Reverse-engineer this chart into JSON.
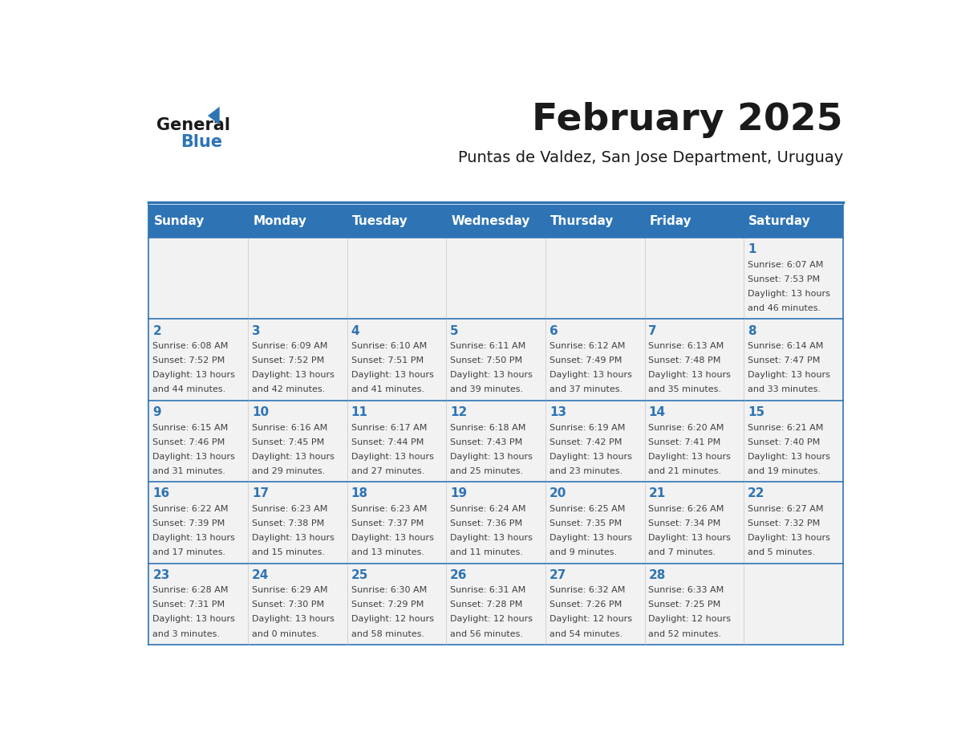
{
  "title": "February 2025",
  "subtitle": "Puntas de Valdez, San Jose Department, Uruguay",
  "days_of_week": [
    "Sunday",
    "Monday",
    "Tuesday",
    "Wednesday",
    "Thursday",
    "Friday",
    "Saturday"
  ],
  "header_bg": "#2E74B5",
  "header_text": "#FFFFFF",
  "cell_bg_light": "#F2F2F2",
  "cell_bg_white": "#FFFFFF",
  "border_color": "#2E74B5",
  "day_number_color": "#2E74B5",
  "cell_text_color": "#404040",
  "title_color": "#1A1A1A",
  "subtitle_color": "#1A1A1A",
  "logo_general_color": "#1A1A1A",
  "logo_blue_color": "#2E74B5",
  "weeks": [
    [
      {
        "day": "",
        "info": ""
      },
      {
        "day": "",
        "info": ""
      },
      {
        "day": "",
        "info": ""
      },
      {
        "day": "",
        "info": ""
      },
      {
        "day": "",
        "info": ""
      },
      {
        "day": "",
        "info": ""
      },
      {
        "day": "1",
        "info": "Sunrise: 6:07 AM\nSunset: 7:53 PM\nDaylight: 13 hours\nand 46 minutes."
      }
    ],
    [
      {
        "day": "2",
        "info": "Sunrise: 6:08 AM\nSunset: 7:52 PM\nDaylight: 13 hours\nand 44 minutes."
      },
      {
        "day": "3",
        "info": "Sunrise: 6:09 AM\nSunset: 7:52 PM\nDaylight: 13 hours\nand 42 minutes."
      },
      {
        "day": "4",
        "info": "Sunrise: 6:10 AM\nSunset: 7:51 PM\nDaylight: 13 hours\nand 41 minutes."
      },
      {
        "day": "5",
        "info": "Sunrise: 6:11 AM\nSunset: 7:50 PM\nDaylight: 13 hours\nand 39 minutes."
      },
      {
        "day": "6",
        "info": "Sunrise: 6:12 AM\nSunset: 7:49 PM\nDaylight: 13 hours\nand 37 minutes."
      },
      {
        "day": "7",
        "info": "Sunrise: 6:13 AM\nSunset: 7:48 PM\nDaylight: 13 hours\nand 35 minutes."
      },
      {
        "day": "8",
        "info": "Sunrise: 6:14 AM\nSunset: 7:47 PM\nDaylight: 13 hours\nand 33 minutes."
      }
    ],
    [
      {
        "day": "9",
        "info": "Sunrise: 6:15 AM\nSunset: 7:46 PM\nDaylight: 13 hours\nand 31 minutes."
      },
      {
        "day": "10",
        "info": "Sunrise: 6:16 AM\nSunset: 7:45 PM\nDaylight: 13 hours\nand 29 minutes."
      },
      {
        "day": "11",
        "info": "Sunrise: 6:17 AM\nSunset: 7:44 PM\nDaylight: 13 hours\nand 27 minutes."
      },
      {
        "day": "12",
        "info": "Sunrise: 6:18 AM\nSunset: 7:43 PM\nDaylight: 13 hours\nand 25 minutes."
      },
      {
        "day": "13",
        "info": "Sunrise: 6:19 AM\nSunset: 7:42 PM\nDaylight: 13 hours\nand 23 minutes."
      },
      {
        "day": "14",
        "info": "Sunrise: 6:20 AM\nSunset: 7:41 PM\nDaylight: 13 hours\nand 21 minutes."
      },
      {
        "day": "15",
        "info": "Sunrise: 6:21 AM\nSunset: 7:40 PM\nDaylight: 13 hours\nand 19 minutes."
      }
    ],
    [
      {
        "day": "16",
        "info": "Sunrise: 6:22 AM\nSunset: 7:39 PM\nDaylight: 13 hours\nand 17 minutes."
      },
      {
        "day": "17",
        "info": "Sunrise: 6:23 AM\nSunset: 7:38 PM\nDaylight: 13 hours\nand 15 minutes."
      },
      {
        "day": "18",
        "info": "Sunrise: 6:23 AM\nSunset: 7:37 PM\nDaylight: 13 hours\nand 13 minutes."
      },
      {
        "day": "19",
        "info": "Sunrise: 6:24 AM\nSunset: 7:36 PM\nDaylight: 13 hours\nand 11 minutes."
      },
      {
        "day": "20",
        "info": "Sunrise: 6:25 AM\nSunset: 7:35 PM\nDaylight: 13 hours\nand 9 minutes."
      },
      {
        "day": "21",
        "info": "Sunrise: 6:26 AM\nSunset: 7:34 PM\nDaylight: 13 hours\nand 7 minutes."
      },
      {
        "day": "22",
        "info": "Sunrise: 6:27 AM\nSunset: 7:32 PM\nDaylight: 13 hours\nand 5 minutes."
      }
    ],
    [
      {
        "day": "23",
        "info": "Sunrise: 6:28 AM\nSunset: 7:31 PM\nDaylight: 13 hours\nand 3 minutes."
      },
      {
        "day": "24",
        "info": "Sunrise: 6:29 AM\nSunset: 7:30 PM\nDaylight: 13 hours\nand 0 minutes."
      },
      {
        "day": "25",
        "info": "Sunrise: 6:30 AM\nSunset: 7:29 PM\nDaylight: 12 hours\nand 58 minutes."
      },
      {
        "day": "26",
        "info": "Sunrise: 6:31 AM\nSunset: 7:28 PM\nDaylight: 12 hours\nand 56 minutes."
      },
      {
        "day": "27",
        "info": "Sunrise: 6:32 AM\nSunset: 7:26 PM\nDaylight: 12 hours\nand 54 minutes."
      },
      {
        "day": "28",
        "info": "Sunrise: 6:33 AM\nSunset: 7:25 PM\nDaylight: 12 hours\nand 52 minutes."
      },
      {
        "day": "",
        "info": ""
      }
    ]
  ]
}
